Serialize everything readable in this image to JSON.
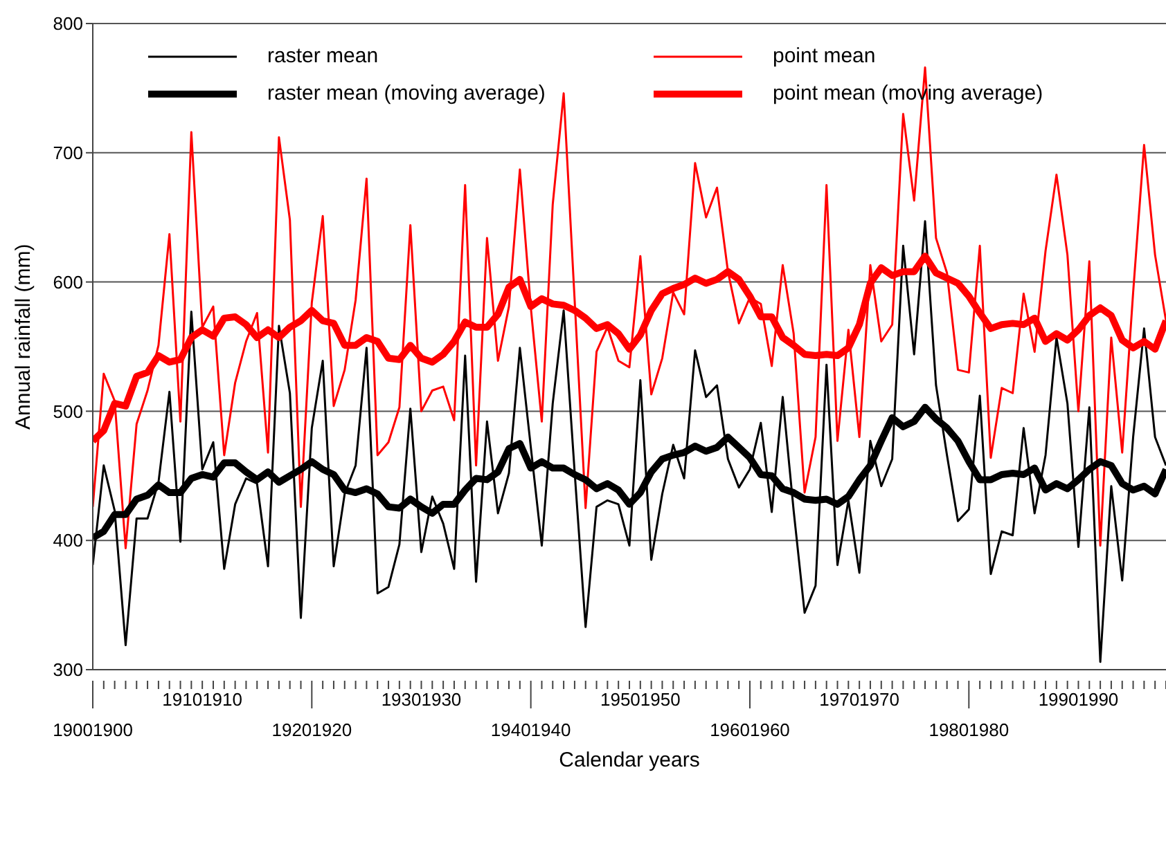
{
  "chart_data": {
    "type": "line",
    "xlabel": "Calendar years",
    "ylabel": "Annual rainfall (mm)",
    "categories": [
      "19001900",
      null,
      null,
      null,
      null,
      null,
      null,
      null,
      null,
      null,
      "19101910",
      null,
      null,
      null,
      null,
      null,
      null,
      null,
      null,
      null,
      "19201920",
      null,
      null,
      null,
      null,
      null,
      null,
      null,
      null,
      null,
      "19301930",
      null,
      null,
      null,
      null,
      null,
      null,
      null,
      null,
      null,
      "19401940",
      null,
      null,
      null,
      null,
      null,
      null,
      null,
      null,
      null,
      "19501950",
      null,
      null,
      null,
      null,
      null,
      null,
      null,
      null,
      null,
      "19601960",
      null,
      null,
      null,
      null,
      null,
      null,
      null,
      null,
      null,
      "19701970",
      null,
      null,
      null,
      null,
      null,
      null,
      null,
      null,
      null,
      "19801980",
      null,
      null,
      null,
      null,
      null,
      null,
      null,
      null,
      null,
      "19901990",
      null,
      null,
      null,
      null,
      null,
      null,
      null,
      null
    ],
    "series": [
      {
        "name": "raster mean",
        "color": "#000000",
        "values": [
          381,
          458,
          423,
          319,
          417,
          417,
          445,
          515,
          399,
          577,
          455,
          476,
          378,
          428,
          448,
          444,
          380,
          566,
          514,
          340,
          487,
          539,
          380,
          436,
          458,
          549,
          359,
          364,
          397,
          502,
          391,
          434,
          413,
          378,
          543,
          368,
          492,
          421,
          452,
          549,
          472,
          396,
          506,
          578,
          453,
          333,
          426,
          431,
          428,
          396,
          524,
          385,
          436,
          474,
          448,
          547,
          511,
          520,
          463,
          441,
          455,
          491,
          422,
          511,
          423,
          344,
          365,
          536,
          381,
          431,
          375,
          477,
          442,
          463,
          628,
          544,
          647,
          520,
          466,
          415,
          424,
          512,
          374,
          407,
          404,
          487,
          421,
          466,
          557,
          506,
          395,
          503,
          306,
          442,
          369,
          480,
          564,
          480,
          458
        ]
      },
      {
        "name": "point mean",
        "color": "#ff0000",
        "values": [
          426,
          529,
          508,
          394,
          490,
          516,
          551,
          637,
          492,
          716,
          565,
          581,
          466,
          522,
          554,
          576,
          468,
          712,
          648,
          426,
          584,
          651,
          504,
          532,
          586,
          680,
          466,
          476,
          503,
          644,
          500,
          516,
          519,
          493,
          675,
          458,
          634,
          539,
          581,
          687,
          580,
          492,
          660,
          746,
          586,
          425,
          546,
          565,
          539,
          534,
          620,
          513,
          541,
          592,
          575,
          692,
          650,
          673,
          608,
          568,
          588,
          583,
          535,
          613,
          560,
          437,
          480,
          675,
          477,
          563,
          480,
          613,
          554,
          567,
          730,
          663,
          766,
          634,
          607,
          532,
          530,
          628,
          464,
          518,
          514,
          591,
          546,
          624,
          683,
          621,
          500,
          616,
          396,
          557,
          468,
          592,
          706,
          621,
          570
        ]
      },
      {
        "name": "raster mean (moving average)",
        "color": "#000000",
        "values": [
          402,
          407,
          420,
          420,
          432,
          435,
          443,
          437,
          437,
          448,
          451,
          449,
          460,
          460,
          453,
          447,
          453,
          445,
          450,
          455,
          461,
          455,
          451,
          439,
          437,
          440,
          436,
          426,
          425,
          432,
          426,
          421,
          428,
          428,
          439,
          448,
          447,
          453,
          471,
          475,
          456,
          461,
          456,
          456,
          451,
          447,
          440,
          444,
          439,
          428,
          437,
          453,
          463,
          466,
          468,
          473,
          469,
          472,
          480,
          472,
          464,
          451,
          450,
          440,
          437,
          432,
          431,
          432,
          428,
          434,
          447,
          458,
          477,
          495,
          488,
          492,
          503,
          494,
          487,
          477,
          461,
          447,
          447,
          451,
          452,
          451,
          456,
          439,
          444,
          440,
          447,
          455,
          461,
          458,
          444,
          439,
          442,
          436,
          455
        ]
      },
      {
        "name": "point mean (moving average)",
        "color": "#ff0000",
        "values": [
          477,
          485,
          506,
          504,
          527,
          530,
          543,
          538,
          540,
          557,
          563,
          558,
          572,
          573,
          567,
          557,
          563,
          557,
          565,
          570,
          578,
          570,
          568,
          551,
          551,
          557,
          554,
          541,
          540,
          551,
          541,
          538,
          544,
          554,
          569,
          565,
          565,
          575,
          596,
          602,
          581,
          587,
          583,
          582,
          578,
          572,
          564,
          567,
          560,
          548,
          559,
          578,
          591,
          595,
          598,
          603,
          599,
          602,
          608,
          602,
          589,
          573,
          573,
          557,
          551,
          544,
          543,
          544,
          543,
          549,
          567,
          599,
          611,
          605,
          608,
          608,
          620,
          607,
          603,
          599,
          589,
          576,
          564,
          567,
          568,
          567,
          572,
          554,
          560,
          555,
          563,
          574,
          580,
          574,
          555,
          549,
          554,
          548,
          570
        ]
      }
    ],
    "ylim": [
      300,
      800
    ],
    "yticks": [
      300,
      400,
      500,
      600,
      700,
      800
    ],
    "grid": "y",
    "legend": "top",
    "marker": "none",
    "line_style": "solid"
  }
}
